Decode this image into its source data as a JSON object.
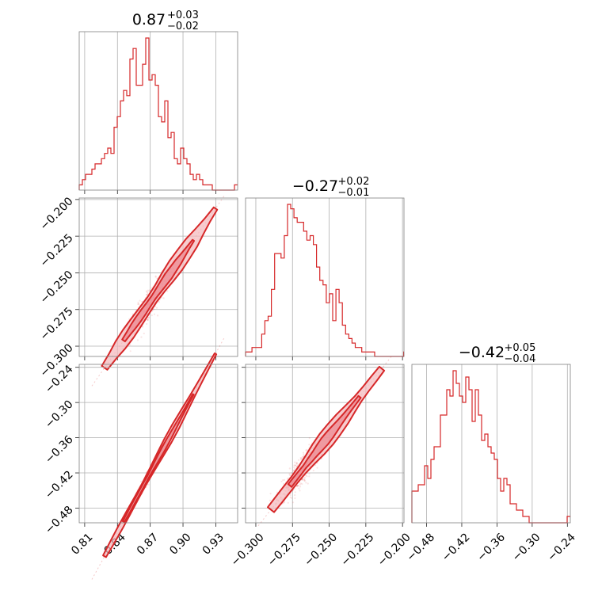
{
  "chart_data": {
    "type": "corner",
    "parameters": [
      {
        "label": "",
        "title": {
          "median": "0.87",
          "plus": "+0.03",
          "minus": "−0.02"
        },
        "range": [
          0.805,
          0.95
        ],
        "ticks": [
          0.81,
          0.84,
          0.87,
          0.9,
          0.93
        ],
        "tick_labels": [
          "0.81",
          "0.84",
          "0.87",
          "0.90",
          "0.93"
        ],
        "hist": {
          "edges_start": 0.805,
          "bin_width": 0.0029,
          "counts": [
            1,
            2,
            3,
            3,
            4,
            5,
            5,
            6,
            7,
            8,
            7,
            12,
            14,
            17,
            19,
            18,
            25,
            27,
            20,
            20,
            24,
            29,
            21,
            22,
            20,
            14,
            13,
            17,
            10,
            11,
            6,
            5,
            8,
            6,
            5,
            3,
            2,
            3,
            2,
            1,
            1,
            1,
            0,
            0,
            0,
            0,
            0,
            0,
            0,
            1
          ]
        }
      },
      {
        "label": "",
        "title": {
          "median": "−0.27",
          "plus": "+0.02",
          "minus": "−0.01"
        },
        "range": [
          -0.307,
          -0.199
        ],
        "ticks": [
          -0.3,
          -0.275,
          -0.25,
          -0.225,
          -0.2
        ],
        "tick_labels": [
          "−0.300",
          "−0.275",
          "−0.250",
          "−0.225",
          "−0.200"
        ],
        "hist": {
          "edges_start": -0.307,
          "bin_width": 0.0022,
          "counts": [
            1,
            1,
            2,
            2,
            2,
            5,
            8,
            9,
            15,
            23,
            23,
            22,
            27,
            34,
            33,
            31,
            30,
            30,
            28,
            26,
            27,
            25,
            20,
            17,
            16,
            12,
            14,
            8,
            15,
            12,
            7,
            5,
            4,
            3,
            2,
            2,
            1,
            1,
            1,
            1,
            0,
            0,
            0,
            0,
            0,
            0,
            0,
            0,
            0,
            1
          ]
        }
      },
      {
        "label": "",
        "title": {
          "median": "−0.42",
          "plus": "+0.05",
          "minus": "−0.04"
        },
        "range": [
          -0.505,
          -0.235
        ],
        "ticks": [
          -0.48,
          -0.42,
          -0.36,
          -0.3,
          -0.24
        ],
        "tick_labels": [
          "−0.48",
          "−0.42",
          "−0.36",
          "−0.30",
          "−0.24"
        ],
        "hist": {
          "edges_start": -0.505,
          "bin_width": 0.0054,
          "counts": [
            5,
            5,
            6,
            6,
            9,
            7,
            10,
            12,
            12,
            17,
            17,
            21,
            20,
            24,
            22,
            20,
            19,
            23,
            21,
            16,
            21,
            17,
            13,
            14,
            12,
            11,
            10,
            7,
            5,
            7,
            6,
            3,
            3,
            2,
            2,
            1,
            1,
            0,
            0,
            0,
            0,
            0,
            0,
            0,
            0,
            0,
            0,
            0,
            0,
            1
          ]
        }
      }
    ],
    "pair_panels": [
      {
        "row": 1,
        "col": 0,
        "x_param": 0,
        "y_param": 1,
        "y_ticks": [
          -0.2,
          -0.225,
          -0.25,
          -0.275,
          -0.3
        ],
        "y_tick_labels": [
          "−0.200",
          "−0.225",
          "−0.250",
          "−0.275",
          "−0.300"
        ]
      },
      {
        "row": 2,
        "col": 0,
        "x_param": 0,
        "y_param": 2,
        "y_ticks": [
          -0.24,
          -0.3,
          -0.36,
          -0.42,
          -0.48
        ],
        "y_tick_labels": [
          "−0.24",
          "−0.30",
          "−0.36",
          "−0.42",
          "−0.48"
        ]
      },
      {
        "row": 2,
        "col": 1,
        "x_param": 1,
        "y_param": 2
      }
    ],
    "linear_relations": {
      "p1_from_p0": {
        "slope": 1.07,
        "intercept": -1.2009
      },
      "p2_from_p0": {
        "slope": 3.4,
        "intercept": -3.378
      },
      "p2_from_p1": {
        "slope": 3.18,
        "intercept": 0.4386
      }
    },
    "color": "#d62728",
    "grid": true
  }
}
